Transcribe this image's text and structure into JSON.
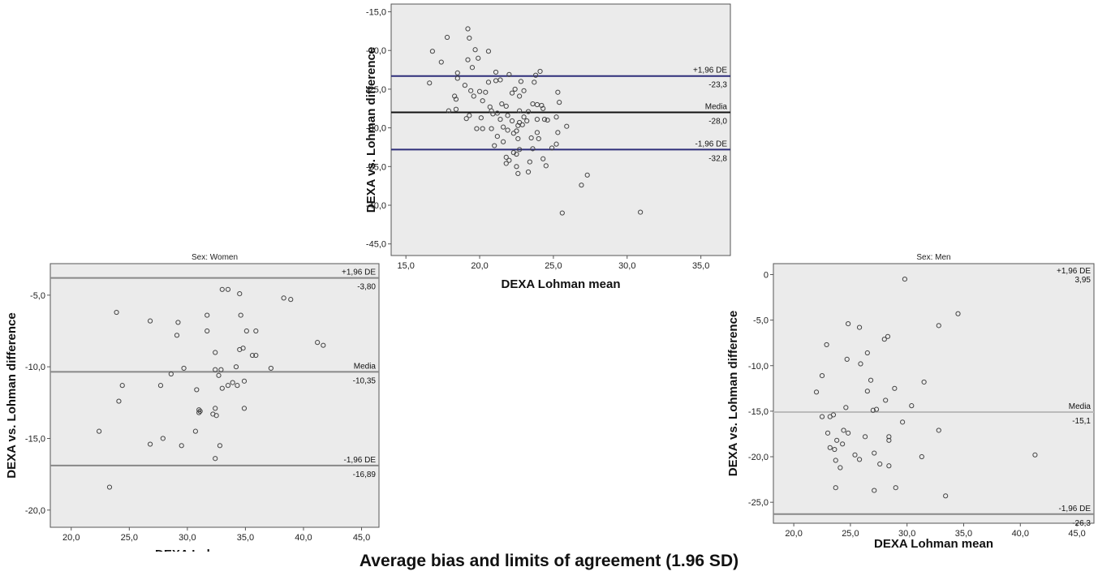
{
  "caption": "Average bias and limits of agreement (1.96 SD)",
  "chart_data": [
    {
      "type": "scatter",
      "panel_title": "",
      "xlabel": "DEXA Lohman mean",
      "ylabel": "DEXA vs. Lohman difference",
      "xlim": [
        14,
        37
      ],
      "ylim": [
        -46.5,
        -14
      ],
      "xticks": [
        "15,0",
        "20,0",
        "25,0",
        "30,0",
        "35,0"
      ],
      "xtick_values": [
        15,
        20,
        25,
        30,
        35
      ],
      "yticks": [
        "-15,0",
        "-20,0",
        "-25,0",
        "-30,0",
        "-35,0",
        "-40,0",
        "-45,0"
      ],
      "ytick_values": [
        -15,
        -20,
        -25,
        -30,
        -35,
        -40,
        -45
      ],
      "grid": false,
      "plot_bg": "#ebebeb",
      "marker_color": "#444444",
      "reference_lines": [
        {
          "y": -23.3,
          "name": "+1,96 DE",
          "value_label": "-23,3",
          "color": "#2e2e7a"
        },
        {
          "y": -28.0,
          "name": "Media",
          "value_label": "-28,0",
          "color": "#111111"
        },
        {
          "y": -32.8,
          "name": "-1,96 DE",
          "value_label": "-32,8",
          "color": "#2e2e7a"
        }
      ],
      "points": [
        [
          19.2,
          -17.2
        ],
        [
          19.3,
          -18.4
        ],
        [
          17.8,
          -18.3
        ],
        [
          19.7,
          -19.9
        ],
        [
          16.8,
          -20.1
        ],
        [
          20.6,
          -20.1
        ],
        [
          17.4,
          -21.5
        ],
        [
          19.9,
          -21.0
        ],
        [
          19.2,
          -21.2
        ],
        [
          19.5,
          -22.2
        ],
        [
          18.5,
          -22.9
        ],
        [
          21.1,
          -22.8
        ],
        [
          22.0,
          -23.1
        ],
        [
          24.1,
          -22.7
        ],
        [
          23.8,
          -23.2
        ],
        [
          18.5,
          -23.6
        ],
        [
          21.1,
          -23.9
        ],
        [
          21.4,
          -23.8
        ],
        [
          20.6,
          -24.1
        ],
        [
          16.6,
          -24.2
        ],
        [
          22.8,
          -24.0
        ],
        [
          23.7,
          -24.1
        ],
        [
          19.0,
          -24.5
        ],
        [
          22.4,
          -25.0
        ],
        [
          19.4,
          -25.2
        ],
        [
          20.0,
          -25.3
        ],
        [
          20.4,
          -25.4
        ],
        [
          23.0,
          -25.2
        ],
        [
          25.3,
          -25.4
        ],
        [
          22.2,
          -25.5
        ],
        [
          19.6,
          -25.9
        ],
        [
          18.3,
          -25.9
        ],
        [
          18.4,
          -26.3
        ],
        [
          22.7,
          -25.9
        ],
        [
          20.2,
          -26.5
        ],
        [
          25.4,
          -26.7
        ],
        [
          21.5,
          -26.9
        ],
        [
          23.6,
          -26.9
        ],
        [
          23.9,
          -27.0
        ],
        [
          24.2,
          -27.1
        ],
        [
          21.8,
          -27.2
        ],
        [
          20.7,
          -27.3
        ],
        [
          24.3,
          -27.5
        ],
        [
          18.4,
          -27.6
        ],
        [
          17.9,
          -27.8
        ],
        [
          20.8,
          -27.8
        ],
        [
          22.7,
          -27.8
        ],
        [
          23.3,
          -27.9
        ],
        [
          21.2,
          -28.1
        ],
        [
          20.9,
          -28.2
        ],
        [
          19.3,
          -28.4
        ],
        [
          21.9,
          -28.4
        ],
        [
          23.0,
          -28.6
        ],
        [
          25.2,
          -28.6
        ],
        [
          20.1,
          -28.7
        ],
        [
          19.1,
          -28.8
        ],
        [
          21.4,
          -28.9
        ],
        [
          23.9,
          -28.9
        ],
        [
          24.4,
          -28.9
        ],
        [
          24.6,
          -29.0
        ],
        [
          22.2,
          -29.1
        ],
        [
          23.2,
          -29.1
        ],
        [
          22.7,
          -29.3
        ],
        [
          22.9,
          -29.6
        ],
        [
          22.6,
          -29.7
        ],
        [
          25.9,
          -29.8
        ],
        [
          21.6,
          -29.9
        ],
        [
          19.8,
          -30.1
        ],
        [
          20.2,
          -30.1
        ],
        [
          20.8,
          -30.1
        ],
        [
          21.9,
          -30.3
        ],
        [
          22.5,
          -30.4
        ],
        [
          22.3,
          -30.7
        ],
        [
          23.9,
          -30.6
        ],
        [
          25.3,
          -30.6
        ],
        [
          21.2,
          -31.1
        ],
        [
          22.6,
          -31.4
        ],
        [
          23.5,
          -31.3
        ],
        [
          24.0,
          -31.4
        ],
        [
          21.6,
          -31.8
        ],
        [
          25.2,
          -32.1
        ],
        [
          21.0,
          -32.3
        ],
        [
          24.9,
          -32.6
        ],
        [
          23.6,
          -32.7
        ],
        [
          22.7,
          -32.8
        ],
        [
          22.3,
          -33.2
        ],
        [
          22.5,
          -33.4
        ],
        [
          21.8,
          -33.8
        ],
        [
          22.0,
          -34.2
        ],
        [
          24.3,
          -34.0
        ],
        [
          21.8,
          -34.6
        ],
        [
          23.4,
          -34.4
        ],
        [
          24.5,
          -34.9
        ],
        [
          22.5,
          -35.0
        ],
        [
          23.3,
          -35.7
        ],
        [
          22.6,
          -35.9
        ],
        [
          27.3,
          -36.1
        ],
        [
          26.9,
          -37.4
        ],
        [
          25.6,
          -41.0
        ],
        [
          30.9,
          -40.9
        ]
      ]
    },
    {
      "type": "scatter",
      "panel_title": "Sex: Women",
      "xlabel": "DEXA Lohman mean",
      "ylabel": "DEXA vs. Lohman difference",
      "xlim": [
        18.2,
        46.5
      ],
      "ylim": [
        -21.2,
        -2.8
      ],
      "xticks": [
        "20,0",
        "25,0",
        "30,0",
        "35,0",
        "40,0",
        "45,0"
      ],
      "xtick_values": [
        20,
        25,
        30,
        35,
        40,
        45
      ],
      "yticks": [
        "-5,0",
        "-10,0",
        "-15,0",
        "-20,0"
      ],
      "ytick_values": [
        -5,
        -10,
        -15,
        -20
      ],
      "grid": false,
      "plot_bg": "#ebebeb",
      "marker_color": "#444444",
      "reference_lines": [
        {
          "y": -3.8,
          "name": "+1,96 DE",
          "value_label": "-3,80",
          "color": "#888888"
        },
        {
          "y": -10.35,
          "name": "Media",
          "value_label": "-10,35",
          "color": "#888888"
        },
        {
          "y": -16.89,
          "name": "-1,96 DE",
          "value_label": "-16,89",
          "color": "#888888"
        }
      ],
      "points": [
        [
          33.0,
          -4.6
        ],
        [
          33.5,
          -4.6
        ],
        [
          34.5,
          -4.9
        ],
        [
          38.3,
          -5.2
        ],
        [
          38.9,
          -5.3
        ],
        [
          23.9,
          -6.2
        ],
        [
          34.6,
          -6.4
        ],
        [
          31.7,
          -6.4
        ],
        [
          26.8,
          -6.8
        ],
        [
          29.2,
          -6.9
        ],
        [
          29.1,
          -7.8
        ],
        [
          31.7,
          -7.5
        ],
        [
          35.1,
          -7.5
        ],
        [
          35.9,
          -7.5
        ],
        [
          41.2,
          -8.3
        ],
        [
          41.7,
          -8.5
        ],
        [
          34.5,
          -8.8
        ],
        [
          34.8,
          -8.7
        ],
        [
          32.4,
          -9.0
        ],
        [
          35.6,
          -9.2
        ],
        [
          35.9,
          -9.2
        ],
        [
          34.2,
          -10.0
        ],
        [
          37.2,
          -10.1
        ],
        [
          29.7,
          -10.1
        ],
        [
          32.4,
          -10.2
        ],
        [
          32.9,
          -10.2
        ],
        [
          28.6,
          -10.5
        ],
        [
          32.7,
          -10.6
        ],
        [
          34.9,
          -11.0
        ],
        [
          33.9,
          -11.1
        ],
        [
          33.5,
          -11.3
        ],
        [
          34.3,
          -11.3
        ],
        [
          24.4,
          -11.3
        ],
        [
          27.7,
          -11.3
        ],
        [
          33.0,
          -11.5
        ],
        [
          30.8,
          -11.6
        ],
        [
          24.1,
          -12.4
        ],
        [
          34.9,
          -12.9
        ],
        [
          32.4,
          -12.9
        ],
        [
          31.0,
          -13.0
        ],
        [
          31.0,
          -13.2
        ],
        [
          31.1,
          -13.1
        ],
        [
          32.2,
          -13.3
        ],
        [
          32.5,
          -13.4
        ],
        [
          30.7,
          -14.5
        ],
        [
          22.4,
          -14.5
        ],
        [
          27.9,
          -15.0
        ],
        [
          26.8,
          -15.4
        ],
        [
          32.8,
          -15.5
        ],
        [
          29.5,
          -15.5
        ],
        [
          32.4,
          -16.4
        ],
        [
          23.3,
          -18.4
        ]
      ]
    },
    {
      "type": "scatter",
      "panel_title": "Sex: Men",
      "xlabel": "DEXA Lohman mean",
      "ylabel": "DEXA vs. Lohman difference",
      "xlim": [
        18.2,
        46.5
      ],
      "ylim": [
        -27.3,
        1.2
      ],
      "xticks": [
        "20,0",
        "25,0",
        "30,0",
        "35,0",
        "40,0",
        "45,0"
      ],
      "xtick_values": [
        20,
        25,
        30,
        35,
        40,
        45
      ],
      "yticks": [
        "0",
        "-5,0",
        "-10,0",
        "-15,0",
        "-20,0",
        "-25,0"
      ],
      "ytick_values": [
        0,
        -5,
        -10,
        -15,
        -20,
        -25
      ],
      "grid": false,
      "plot_bg": "#ebebeb",
      "marker_color": "#444444",
      "reference_lines": [
        {
          "y": 3.95,
          "name": "+1,96 DE",
          "value_label": "3,95",
          "color": "#888888"
        },
        {
          "y": -15.1,
          "name": "Media",
          "value_label": "-15,1",
          "color": "#bbbbbb"
        },
        {
          "y": -26.3,
          "name": "-1,96 DE",
          "value_label": "-26,3",
          "color": "#888888"
        }
      ],
      "points": [
        [
          29.8,
          -0.5
        ],
        [
          34.5,
          -4.3
        ],
        [
          32.8,
          -5.6
        ],
        [
          24.8,
          -5.4
        ],
        [
          25.8,
          -5.8
        ],
        [
          28.3,
          -6.8
        ],
        [
          28.0,
          -7.1
        ],
        [
          22.9,
          -7.7
        ],
        [
          26.5,
          -8.6
        ],
        [
          24.7,
          -9.3
        ],
        [
          25.9,
          -9.8
        ],
        [
          22.5,
          -11.1
        ],
        [
          31.5,
          -11.8
        ],
        [
          26.8,
          -11.6
        ],
        [
          22.0,
          -12.9
        ],
        [
          26.5,
          -12.8
        ],
        [
          28.9,
          -12.5
        ],
        [
          28.1,
          -13.8
        ],
        [
          30.4,
          -14.4
        ],
        [
          24.6,
          -14.6
        ],
        [
          27.0,
          -14.9
        ],
        [
          27.3,
          -14.8
        ],
        [
          22.5,
          -15.6
        ],
        [
          23.2,
          -15.6
        ],
        [
          23.5,
          -15.4
        ],
        [
          29.6,
          -16.2
        ],
        [
          32.8,
          -17.1
        ],
        [
          23.0,
          -17.4
        ],
        [
          24.4,
          -17.1
        ],
        [
          24.8,
          -17.4
        ],
        [
          26.3,
          -17.8
        ],
        [
          28.4,
          -17.8
        ],
        [
          28.4,
          -18.2
        ],
        [
          23.8,
          -18.2
        ],
        [
          24.3,
          -18.6
        ],
        [
          23.2,
          -19.0
        ],
        [
          23.6,
          -19.2
        ],
        [
          27.1,
          -19.6
        ],
        [
          25.4,
          -19.8
        ],
        [
          31.3,
          -20.0
        ],
        [
          41.3,
          -19.8
        ],
        [
          25.8,
          -20.3
        ],
        [
          23.7,
          -20.4
        ],
        [
          27.6,
          -20.8
        ],
        [
          28.4,
          -21.0
        ],
        [
          24.1,
          -21.2
        ],
        [
          23.7,
          -23.4
        ],
        [
          29.0,
          -23.4
        ],
        [
          27.1,
          -23.7
        ],
        [
          33.4,
          -24.3
        ]
      ]
    }
  ]
}
